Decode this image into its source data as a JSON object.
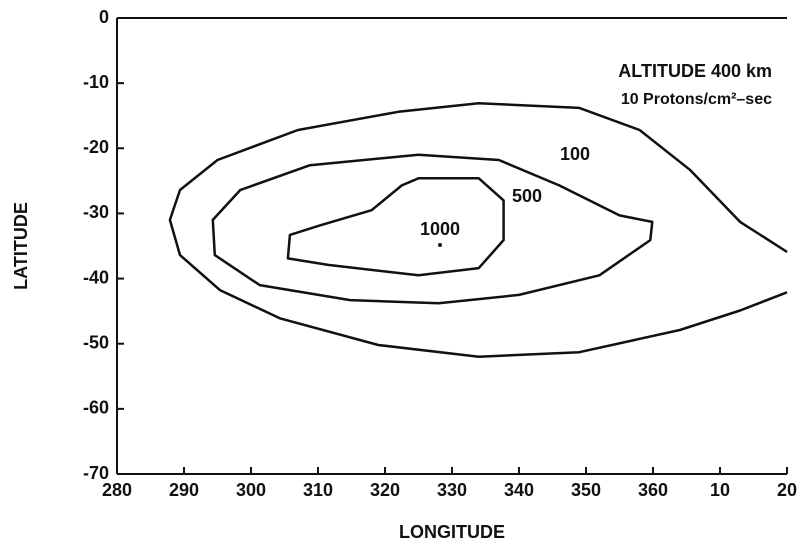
{
  "chart_data": {
    "type": "contour",
    "xlabel": "LONGITUDE",
    "ylabel": "LATITUDE",
    "annotations": [
      "ALTITUDE  400 km",
      "10 Protons/cm²–sec"
    ],
    "xlim": [
      280,
      380
    ],
    "ylim": [
      -70,
      0
    ],
    "xticks": [
      280,
      290,
      300,
      310,
      320,
      330,
      340,
      350,
      360,
      {
        "value": 370,
        "label": "10"
      },
      {
        "value": 380,
        "label": "20"
      }
    ],
    "yticks": [
      0,
      -10,
      -20,
      -30,
      -40,
      -50,
      -60,
      -70
    ],
    "color": "#111111",
    "contours": [
      {
        "level": 100,
        "closed": false,
        "x": [
          380,
          373,
          365.5,
          358,
          349,
          334,
          322,
          307,
          295,
          289.4,
          287.9,
          289.4,
          295.4,
          304.3,
          319,
          334,
          349,
          364,
          373,
          380
        ],
        "y": [
          -35.9,
          -31.3,
          -23.3,
          -17.2,
          -13.8,
          -13.1,
          -14.4,
          -17.2,
          -21.8,
          -26.4,
          -31,
          -36.4,
          -41.8,
          -46.1,
          -50.2,
          -52,
          -51.3,
          -47.9,
          -44.9,
          -42.1
        ]
      },
      {
        "level": 500,
        "closed": true,
        "x": [
          346,
          355,
          359.9,
          359.6,
          352,
          340,
          328,
          314.8,
          301.3,
          294.6,
          294.3,
          298.4,
          308.8,
          325,
          337
        ],
        "y": [
          -25.7,
          -30.3,
          -31.3,
          -34.1,
          -39.5,
          -42.5,
          -43.8,
          -43.3,
          -41,
          -36.4,
          -31,
          -26.4,
          -22.6,
          -21,
          -21.8
        ]
      },
      {
        "level": 1000,
        "closed": true,
        "x": [
          325,
          334,
          337.7,
          337.7,
          334,
          325,
          311.5,
          305.5,
          305.8,
          310.4,
          318,
          322.5
        ],
        "y": [
          -24.6,
          -24.6,
          -28,
          -34.1,
          -38.4,
          -39.5,
          -37.9,
          -36.9,
          -33.3,
          -31.8,
          -29.5,
          -25.7
        ]
      }
    ],
    "contour_label_positions": null
  }
}
